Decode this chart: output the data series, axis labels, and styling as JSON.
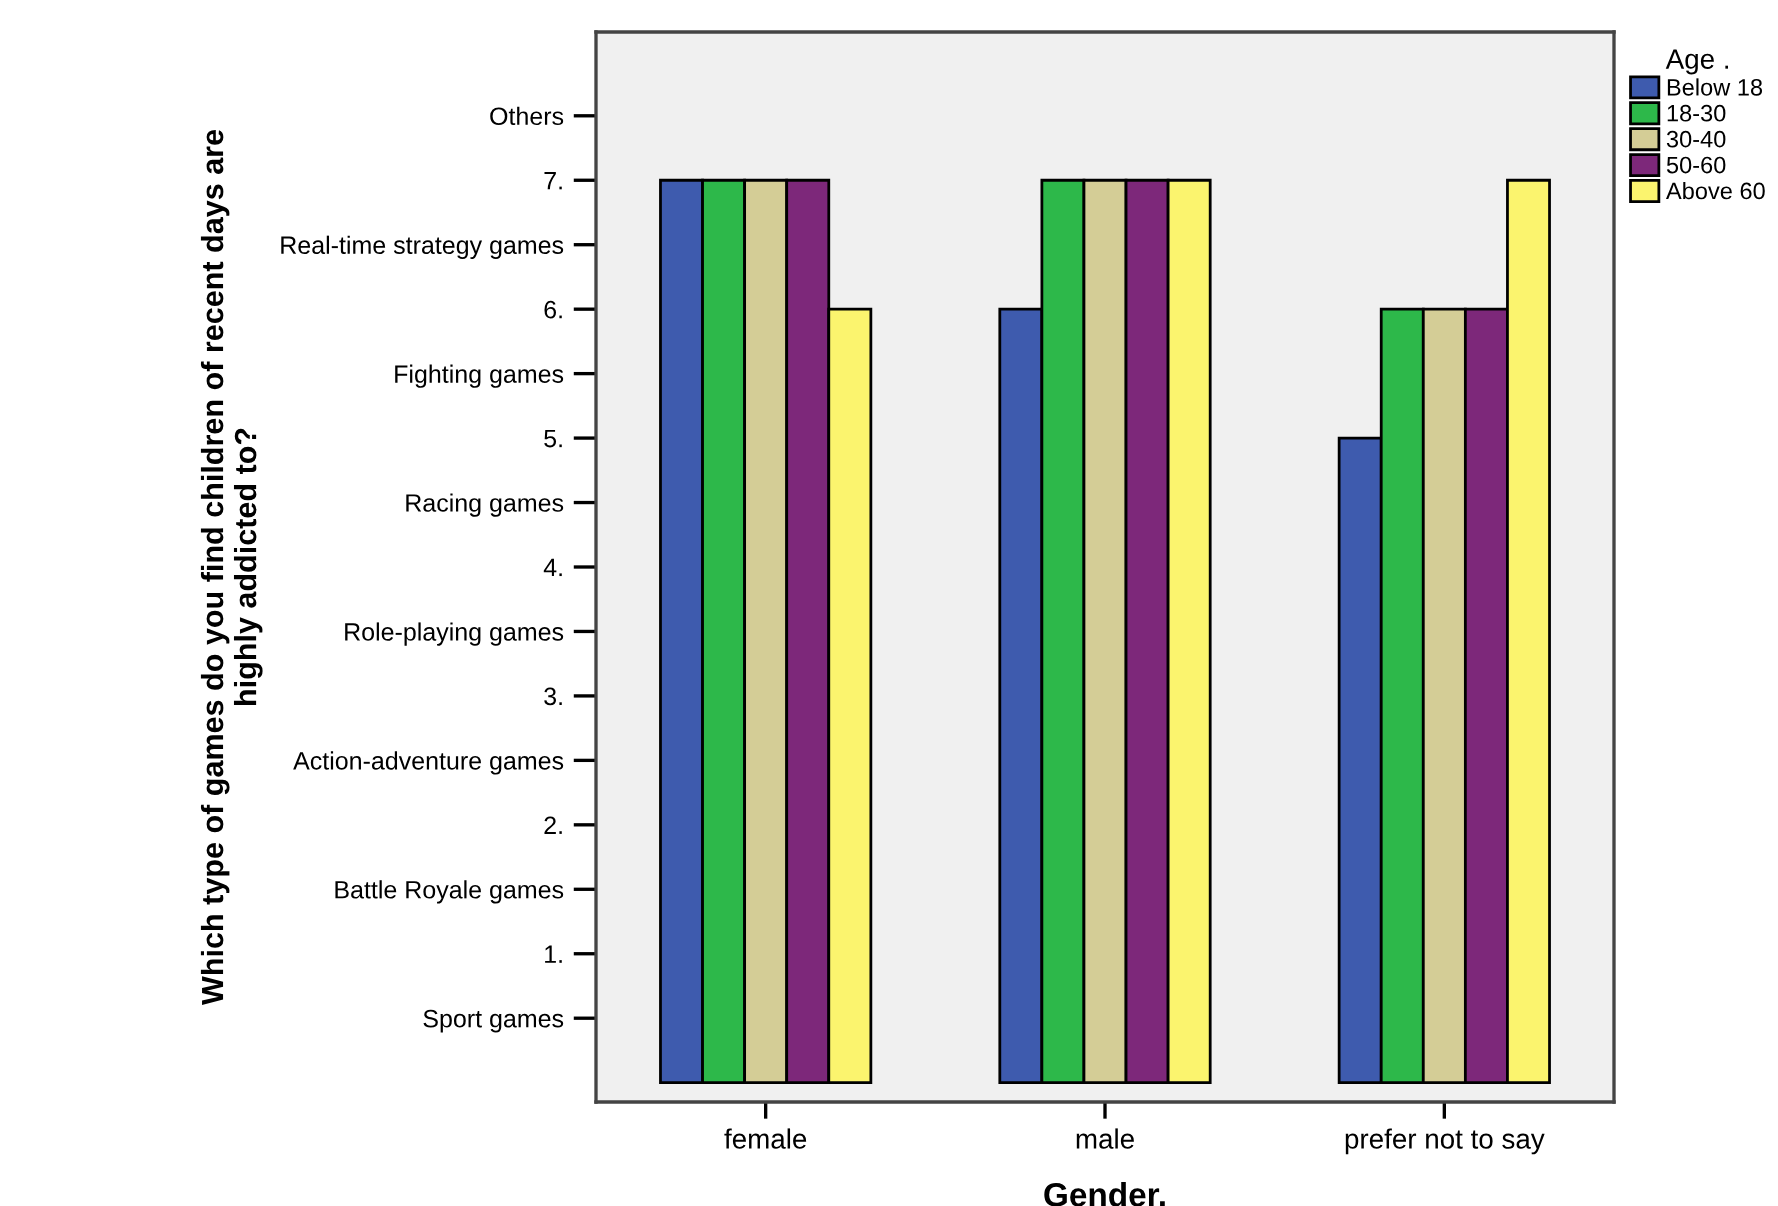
{
  "chart_data": {
    "type": "bar",
    "xlabel": "Gender.",
    "ylabel": "Which type of games do you find children of recent days are\nhighly addicted to?",
    "legend_title": "Age .",
    "categories": [
      "female",
      "male",
      "prefer not to say"
    ],
    "series": [
      {
        "name": "Below 18",
        "color": "#3e5bae",
        "values": [
          7,
          6,
          5
        ]
      },
      {
        "name": "18-30",
        "color": "#2db84a",
        "values": [
          7,
          7,
          6
        ]
      },
      {
        "name": "30-40",
        "color": "#d4cd96",
        "values": [
          7,
          7,
          6
        ]
      },
      {
        "name": "50-60",
        "color": "#7d287a",
        "values": [
          7,
          7,
          6
        ]
      },
      {
        "name": "Above 60",
        "color": "#fbf46e",
        "values": [
          6,
          7,
          7
        ]
      }
    ],
    "ylim": [
      -0.15,
      8.15
    ],
    "yticks": [
      {
        "value": 0.5,
        "label": "Sport games"
      },
      {
        "value": 1,
        "label": "1."
      },
      {
        "value": 1.5,
        "label": "Battle Royale games"
      },
      {
        "value": 2,
        "label": "2."
      },
      {
        "value": 2.5,
        "label": "Action-adventure games"
      },
      {
        "value": 3,
        "label": "3."
      },
      {
        "value": 3.5,
        "label": "Role-playing games"
      },
      {
        "value": 4,
        "label": "4."
      },
      {
        "value": 4.5,
        "label": "Racing games"
      },
      {
        "value": 5,
        "label": "5."
      },
      {
        "value": 5.5,
        "label": "Fighting games"
      },
      {
        "value": 6,
        "label": "6."
      },
      {
        "value": 6.5,
        "label": "Real-time strategy games"
      },
      {
        "value": 7,
        "label": "7."
      },
      {
        "value": 7.5,
        "label": "Others"
      }
    ],
    "grid": false,
    "legend": "top right"
  }
}
